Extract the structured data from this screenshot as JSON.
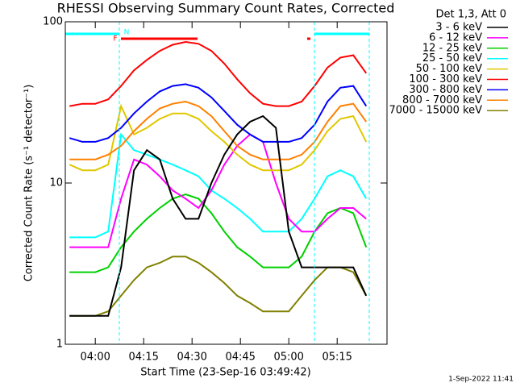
{
  "chart_data": {
    "type": "line",
    "title": "RHESSI Observing Summary Count Rates, Corrected",
    "x_label": "Start Time (23-Sep-16 03:49:42)",
    "y_label": "Corrected Count Rate (s⁻¹ detector⁻¹)",
    "legend_title": "Det 1,3, Att 0",
    "legend_position": "outside-right",
    "timestamp": "1-Sep-2022 11:41",
    "annotations": [
      "N",
      "F"
    ],
    "log_y": true,
    "xlim": [
      -9.3,
      90.45
    ],
    "xticks": [
      {
        "value": 0,
        "label": "04:00"
      },
      {
        "value": 15,
        "label": "04:15"
      },
      {
        "value": 30,
        "label": "04:30"
      },
      {
        "value": 45,
        "label": "04:45"
      },
      {
        "value": 60,
        "label": "05:00"
      },
      {
        "value": 75,
        "label": "05:15"
      }
    ],
    "ylim": [
      1,
      100
    ],
    "yticks": [
      1,
      10,
      100
    ],
    "x": [
      -8,
      -4,
      0,
      4,
      8,
      12,
      16,
      20,
      24,
      28,
      32,
      36,
      40,
      44,
      48,
      52,
      56,
      60,
      64,
      68,
      72,
      76,
      80,
      84
    ],
    "series": [
      {
        "name": "3 - 6 keV",
        "color": "#000000",
        "values": [
          1.5,
          1.5,
          1.5,
          1.5,
          3,
          12,
          16,
          14,
          8,
          6,
          6,
          10,
          15,
          20,
          24,
          26,
          22,
          5,
          3,
          3,
          3,
          3,
          3,
          2
        ]
      },
      {
        "name": "6 - 12 keV",
        "color": "#ff00ff",
        "values": [
          4,
          4,
          4,
          4,
          8,
          14,
          13,
          11,
          9,
          8,
          7,
          9,
          13,
          17,
          20,
          18,
          10,
          6,
          5,
          5,
          6,
          7,
          7,
          6
        ]
      },
      {
        "name": "12 - 25 keV",
        "color": "#00d000",
        "values": [
          2.8,
          2.8,
          2.8,
          3,
          4,
          5,
          6,
          7,
          8,
          8.5,
          8,
          6.5,
          5,
          4,
          3.5,
          3,
          3,
          3,
          3.5,
          5,
          6.5,
          7,
          6.5,
          4
        ]
      },
      {
        "name": "25 - 50 keV",
        "color": "#00ffff",
        "values": [
          4.6,
          4.6,
          4.6,
          5,
          20,
          16,
          15,
          14,
          13,
          12,
          11,
          9,
          8,
          7,
          6,
          5,
          5,
          5,
          6,
          8,
          11,
          12,
          11,
          8
        ]
      },
      {
        "name": "50 - 100 keV",
        "color": "#e0c800",
        "values": [
          13,
          12,
          12,
          13,
          30,
          20,
          22,
          25,
          27,
          27,
          25,
          21,
          18,
          15,
          13,
          12,
          12,
          12,
          13,
          16,
          21,
          25,
          26,
          18
        ]
      },
      {
        "name": "100 - 300 keV",
        "color": "#ff0000",
        "values": [
          30,
          31,
          31,
          33,
          40,
          50,
          58,
          66,
          72,
          75,
          73,
          66,
          55,
          44,
          36,
          31,
          30,
          30,
          32,
          40,
          52,
          60,
          62,
          48
        ]
      },
      {
        "name": "300 - 800 keV",
        "color": "#0000ff",
        "values": [
          19,
          18,
          18,
          19,
          22,
          27,
          32,
          37,
          40,
          41,
          39,
          34,
          28,
          23,
          20,
          18,
          18,
          18,
          19,
          23,
          32,
          39,
          40,
          30
        ]
      },
      {
        "name": "800 - 7000 keV",
        "color": "#ff8000",
        "values": [
          14,
          14,
          14,
          15,
          17,
          21,
          25,
          29,
          31,
          32,
          30,
          26,
          21,
          17,
          15,
          14,
          14,
          14,
          15,
          18,
          24,
          30,
          31,
          24
        ]
      },
      {
        "name": "7000 - 15000 keV",
        "color": "#808000",
        "values": [
          1.5,
          1.5,
          1.5,
          1.6,
          2,
          2.5,
          3,
          3.2,
          3.5,
          3.5,
          3.2,
          2.8,
          2.4,
          2,
          1.8,
          1.6,
          1.6,
          1.6,
          2,
          2.5,
          3,
          3,
          2.8,
          2
        ]
      }
    ]
  }
}
